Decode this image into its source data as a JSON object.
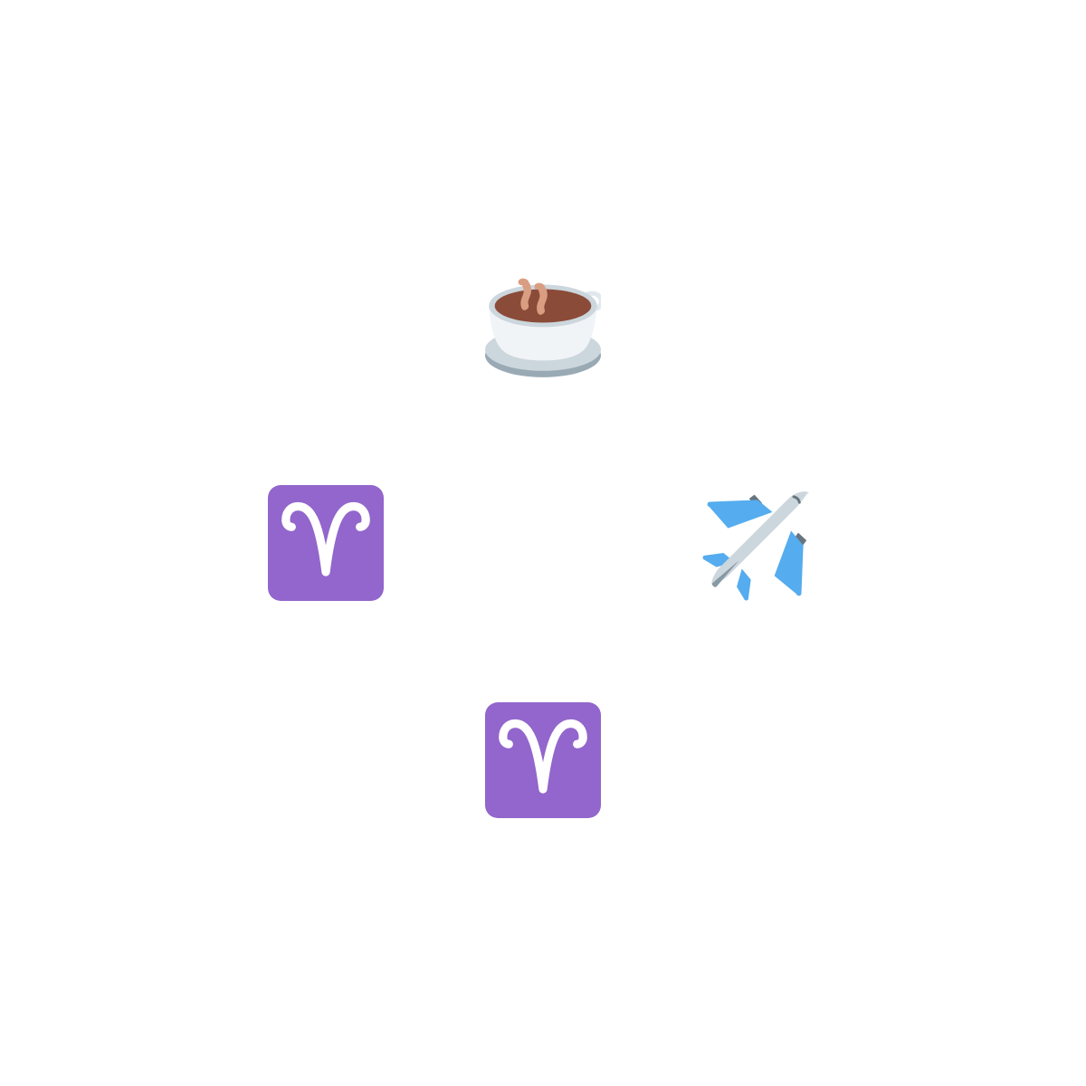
{
  "icons": [
    {
      "position": "top",
      "name": "hot-beverage-icon",
      "colors": {
        "cup": "#F1F4F6",
        "rim": "#CCD6DD",
        "saucer_shadow": "#99AAB5",
        "coffee": "#8A4B38",
        "steam": "#D99E82"
      }
    },
    {
      "position": "right",
      "name": "airplane-icon",
      "colors": {
        "wings": "#55ACEE",
        "body": "#CCD6DD",
        "engines": "#66757F",
        "accent": "#8899A6"
      }
    },
    {
      "position": "bottom",
      "name": "aries-icon",
      "colors": {
        "background": "#9266CC",
        "glyph": "#FFFFFF"
      }
    },
    {
      "position": "left",
      "name": "aries-icon",
      "colors": {
        "background": "#9266CC",
        "glyph": "#FFFFFF"
      }
    }
  ]
}
